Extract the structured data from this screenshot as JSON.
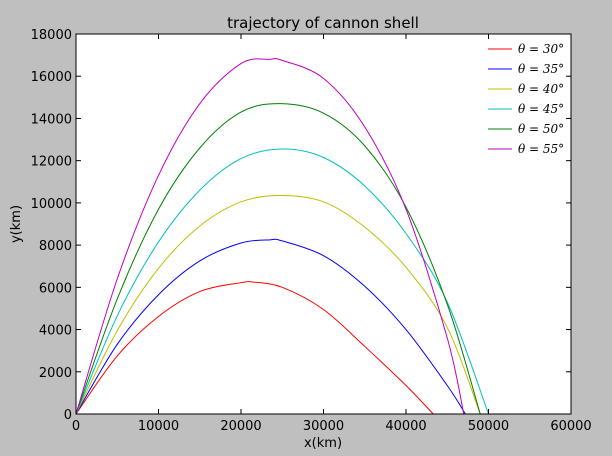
{
  "chart_data": {
    "type": "line",
    "title": "trajectory of cannon shell",
    "xlabel": "x(km)",
    "ylabel": "y(km)",
    "xlim": [
      0,
      60000
    ],
    "ylim": [
      0,
      18000
    ],
    "xticks": [
      0,
      10000,
      20000,
      30000,
      40000,
      50000,
      60000
    ],
    "yticks": [
      0,
      2000,
      4000,
      6000,
      8000,
      10000,
      12000,
      14000,
      16000,
      18000
    ],
    "xtick_labels": [
      "0",
      "10000",
      "20000",
      "30000",
      "40000",
      "50000",
      "60000"
    ],
    "ytick_labels": [
      "0",
      "2000",
      "4000",
      "6000",
      "8000",
      "10000",
      "12000",
      "14000",
      "16000",
      "18000"
    ],
    "grid": false,
    "legend_position": "top-right",
    "series": [
      {
        "name": "θ = 30°",
        "color": "#ff0000",
        "x": [
          0,
          5000,
          10000,
          15000,
          20000,
          21500,
          25000,
          30000,
          35000,
          40000,
          43300
        ],
        "y": [
          0,
          2750,
          4620,
          5800,
          6220,
          6250,
          6000,
          4950,
          3200,
          1350,
          0
        ]
      },
      {
        "name": "θ = 35°",
        "color": "#0000ff",
        "x": [
          0,
          5000,
          10000,
          15000,
          20000,
          23500,
          25000,
          30000,
          35000,
          40000,
          45000,
          47200
        ],
        "y": [
          0,
          3300,
          5650,
          7250,
          8100,
          8250,
          8200,
          7500,
          6050,
          4000,
          1350,
          0
        ]
      },
      {
        "name": "θ = 40°",
        "color": "#bfbf00",
        "x": [
          0,
          5000,
          10000,
          15000,
          20000,
          24800,
          30000,
          35000,
          40000,
          45000,
          49000
        ],
        "y": [
          0,
          3950,
          6900,
          8900,
          10050,
          10350,
          10050,
          8850,
          6950,
          4100,
          0
        ]
      },
      {
        "name": "θ = 45°",
        "color": "#00bfbf",
        "x": [
          0,
          5000,
          10000,
          15000,
          20000,
          25000,
          30000,
          35000,
          40000,
          45000,
          50000
        ],
        "y": [
          0,
          4650,
          8150,
          10600,
          12100,
          12550,
          12150,
          10800,
          8550,
          5300,
          0
        ]
      },
      {
        "name": "θ = 50°",
        "color": "#008000",
        "x": [
          0,
          5000,
          10000,
          15000,
          20000,
          24800,
          30000,
          35000,
          40000,
          45000,
          49000
        ],
        "y": [
          0,
          5450,
          9700,
          12600,
          14300,
          14700,
          14250,
          12700,
          9800,
          5200,
          0
        ]
      },
      {
        "name": "θ = 55°",
        "color": "#bf00bf",
        "x": [
          0,
          5000,
          10000,
          15000,
          20000,
          23500,
          25000,
          30000,
          35000,
          40000,
          45000,
          47000
        ],
        "y": [
          0,
          6400,
          11300,
          14700,
          16600,
          16800,
          16750,
          15900,
          13600,
          9700,
          3600,
          0
        ]
      }
    ]
  }
}
